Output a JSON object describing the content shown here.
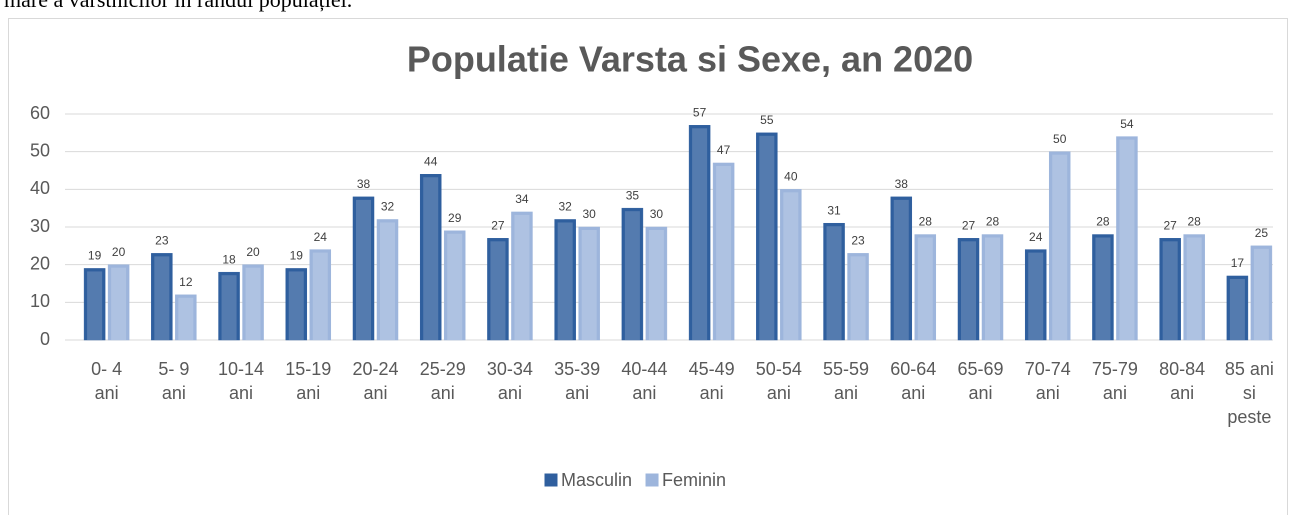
{
  "page_text": "mare a vârstnicilor în rândul populației.",
  "chart_data": {
    "type": "bar",
    "title": "Populatie Varsta si Sexe, an 2020",
    "categories": [
      [
        "0- 4",
        "ani"
      ],
      [
        "5- 9",
        "ani"
      ],
      [
        "10-14",
        "ani"
      ],
      [
        "15-19",
        "ani"
      ],
      [
        "20-24",
        "ani"
      ],
      [
        "25-29",
        "ani"
      ],
      [
        "30-34",
        "ani"
      ],
      [
        "35-39",
        "ani"
      ],
      [
        "40-44",
        "ani"
      ],
      [
        "45-49",
        "ani"
      ],
      [
        "50-54",
        "ani"
      ],
      [
        "55-59",
        "ani"
      ],
      [
        "60-64",
        "ani"
      ],
      [
        "65-69",
        "ani"
      ],
      [
        "70-74",
        "ani"
      ],
      [
        "75-79",
        "ani"
      ],
      [
        "80-84",
        "ani"
      ],
      [
        "85 ani",
        "si",
        "peste"
      ]
    ],
    "series": [
      {
        "name": "Masculin",
        "color": "#2f5f9e",
        "values": [
          19,
          23,
          18,
          19,
          38,
          44,
          27,
          32,
          35,
          57,
          55,
          31,
          38,
          27,
          24,
          28,
          27,
          17
        ]
      },
      {
        "name": "Feminin",
        "color": "#9db5dc",
        "values": [
          20,
          12,
          20,
          24,
          32,
          29,
          34,
          30,
          30,
          47,
          40,
          23,
          28,
          28,
          50,
          54,
          28,
          25
        ]
      }
    ],
    "ylim": [
      0,
      60
    ],
    "yticks": [
      0,
      10,
      20,
      30,
      40,
      50,
      60
    ],
    "grid": true,
    "legend": "bottom"
  }
}
